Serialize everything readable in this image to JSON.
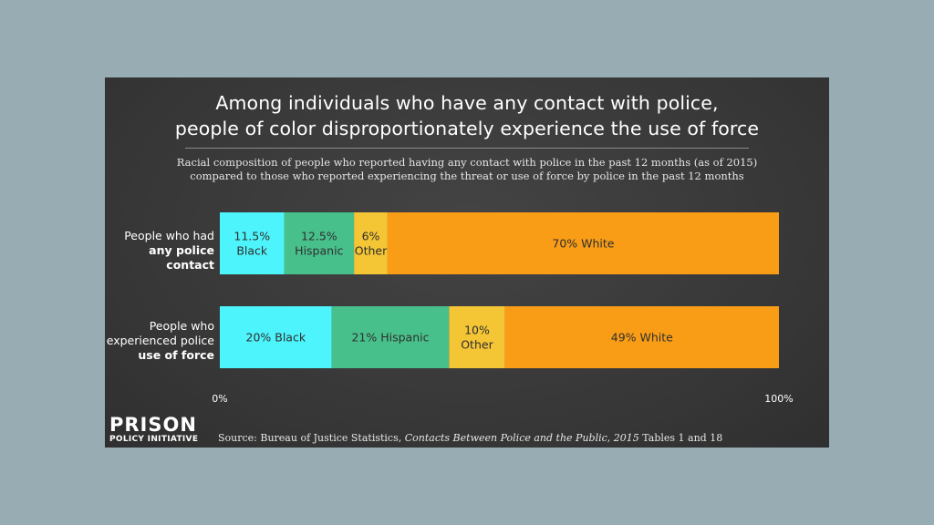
{
  "title_line1": "Among individuals who have any contact with police,",
  "title_line2": "people of color disproportionately experience the use of force",
  "subtitle_line1": "Racial composition of people who reported having any contact with police in the past 12 months (as of 2015)",
  "subtitle_line2": "compared to those who reported experiencing the threat or use of force by police in the past 12 months",
  "logo": {
    "line1": "PRISON",
    "line2": "POLICY INITIATIVE"
  },
  "source": {
    "prefix": "Source: Bureau of Justice Statistics, ",
    "italic": "Contacts Between Police and the Public, 2015",
    "suffix": " Tables 1 and 18"
  },
  "colors": {
    "Black": "#4df4fb",
    "Hispanic": "#48c08b",
    "Other": "#f4c535",
    "White": "#f99d17"
  },
  "chart_data": {
    "type": "bar",
    "orientation": "horizontal",
    "stacked": true,
    "percent_scale": true,
    "xlim": [
      0,
      100
    ],
    "x_ticks": [
      "0%",
      "100%"
    ],
    "grid": false,
    "legend": "none",
    "rows": [
      {
        "label_plain": "People who had",
        "label_bold": "any police contact",
        "segments": [
          {
            "name": "Black",
            "value": 11.5,
            "label": [
              "11.5%",
              "Black"
            ]
          },
          {
            "name": "Hispanic",
            "value": 12.5,
            "label": [
              "12.5%",
              "Hispanic"
            ]
          },
          {
            "name": "Other",
            "value": 6,
            "label": [
              "6%",
              "Other"
            ]
          },
          {
            "name": "White",
            "value": 70,
            "label": [
              "70% White"
            ]
          }
        ]
      },
      {
        "label_plain": "People who experienced police",
        "label_bold": "use of force",
        "segments": [
          {
            "name": "Black",
            "value": 20,
            "label": [
              "20% Black"
            ]
          },
          {
            "name": "Hispanic",
            "value": 21,
            "label": [
              "21% Hispanic"
            ]
          },
          {
            "name": "Other",
            "value": 10,
            "label": [
              "10%",
              "Other"
            ]
          },
          {
            "name": "White",
            "value": 49,
            "label": [
              "49% White"
            ]
          }
        ]
      }
    ]
  }
}
